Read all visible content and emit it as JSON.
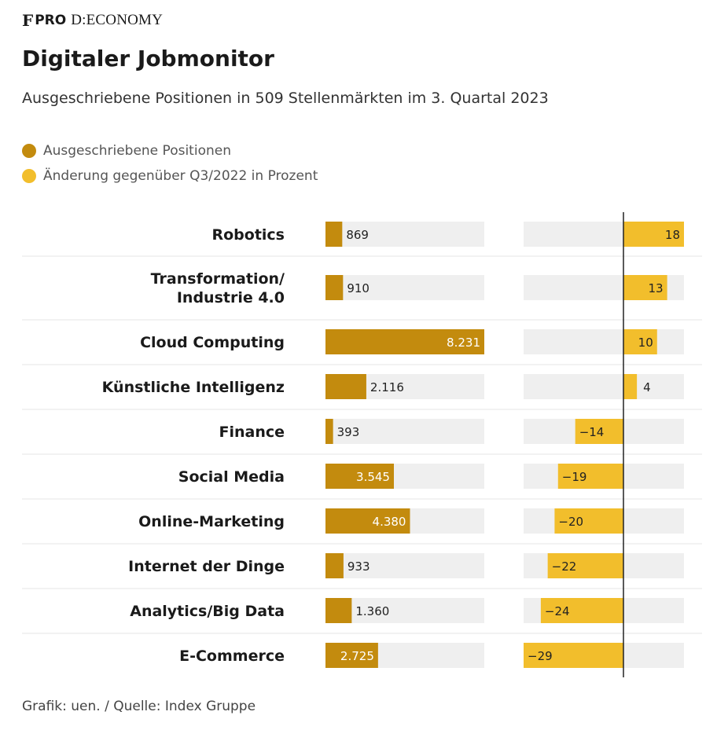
{
  "header": {
    "brand_mark": "F",
    "brand_pro": "PRO",
    "brand_name": "D:ECONOMY",
    "title": "Digitaler Jobmonitor",
    "subtitle": "Ausgeschriebene Positionen in 509 Stellenmärkten im 3. Quartal 2023"
  },
  "legend": [
    {
      "label": "Ausgeschriebene Positionen",
      "color": "#c38b0e"
    },
    {
      "label": "Änderung gegenüber Q3/2022 in Prozent",
      "color": "#f2be2c"
    }
  ],
  "source": "Grafik: uen. / Quelle: Index Gruppe",
  "colors": {
    "positions": "#c38b0e",
    "change": "#f2be2c",
    "track": "#efefef",
    "separator": "#e4e4e4",
    "axis": "#222222"
  },
  "chart_data": {
    "type": "bar",
    "title": "Digitaler Jobmonitor",
    "categories": [
      "Robotics",
      "Transformation/\nIndustrie 4.0",
      "Cloud Computing",
      "Künstliche Intelligenz",
      "Finance",
      "Social Media",
      "Online-Marketing",
      "Internet der Dinge",
      "Analytics/Big Data",
      "E-Commerce"
    ],
    "series": [
      {
        "name": "Ausgeschriebene Positionen",
        "values": [
          869,
          910,
          8231,
          2116,
          393,
          3545,
          4380,
          933,
          1360,
          2725
        ],
        "labels": [
          "869",
          "910",
          "8.231",
          "2.116",
          "393",
          "3.545",
          "4.380",
          "933",
          "1.360",
          "2.725"
        ],
        "range": [
          0,
          8231
        ]
      },
      {
        "name": "Änderung gegenüber Q3/2022 in Prozent",
        "values": [
          18,
          13,
          10,
          4,
          -14,
          -19,
          -20,
          -22,
          -24,
          -29
        ],
        "labels": [
          "18",
          "13",
          "10",
          "4",
          "−14",
          "−19",
          "−20",
          "−22",
          "−24",
          "−29"
        ],
        "range": [
          -29,
          18
        ]
      }
    ]
  }
}
